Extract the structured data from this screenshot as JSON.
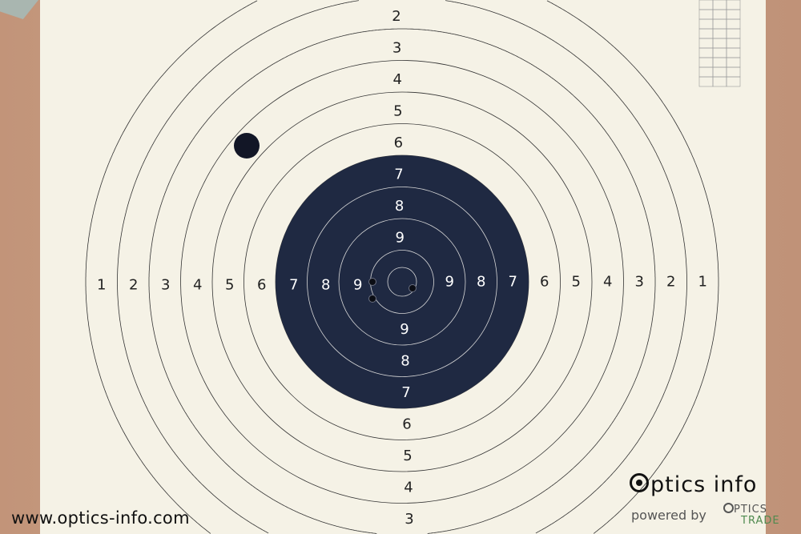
{
  "target": {
    "disc_color": "#1f2942",
    "paper_color": "#f5f2e6",
    "labels_top": [
      "2",
      "3",
      "4",
      "5",
      "6",
      "7",
      "8",
      "9"
    ],
    "labels_bottom": [
      "9",
      "8",
      "7",
      "6",
      "5",
      "4",
      "3"
    ],
    "labels_left": [
      "1",
      "2",
      "3",
      "4",
      "5",
      "6",
      "7",
      "8",
      "9"
    ],
    "labels_right": [
      "9",
      "8",
      "7",
      "6",
      "5",
      "4",
      "3",
      "2",
      "1"
    ],
    "bullet_holes": 3
  },
  "watermark": {
    "url": "www.optics-info.com",
    "logo": "ptics info",
    "powered_by": "powered by",
    "brand_top": "PTICS",
    "brand_bottom": "TRADE"
  }
}
